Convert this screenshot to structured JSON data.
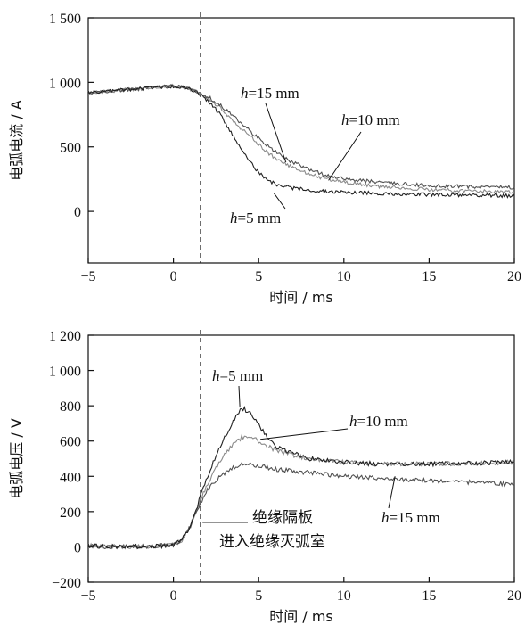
{
  "chart_data": [
    {
      "type": "line",
      "title": "",
      "xlabel": "时间 / ms",
      "ylabel": "电弧电流 / A",
      "xlim": [
        -5,
        20
      ],
      "ylim": [
        -400,
        1500
      ],
      "x_ticks": [
        -5,
        0,
        5,
        10,
        15,
        20
      ],
      "x_tick_labels": [
        "−5",
        "0",
        "5",
        "10",
        "15",
        "20"
      ],
      "y_ticks": [
        0,
        500,
        1000,
        1500
      ],
      "y_tick_labels": [
        "0",
        "500",
        "1 000",
        "1 500"
      ],
      "grid": false,
      "legend": "none",
      "vline_x": 1.6,
      "series": [
        {
          "label": "h=5 mm",
          "label_italic": "h",
          "label_rest": "=5 mm",
          "color": "#202020",
          "x": [
            -5,
            -3,
            -1,
            0,
            0.7,
            1.3,
            2,
            2.7,
            3.3,
            4,
            4.7,
            5.3,
            6,
            7,
            8,
            9,
            10,
            12,
            15,
            18,
            20
          ],
          "y": [
            920,
            940,
            960,
            970,
            960,
            930,
            860,
            760,
            630,
            480,
            350,
            260,
            210,
            180,
            165,
            155,
            148,
            140,
            130,
            125,
            120
          ]
        },
        {
          "label": "h=10 mm",
          "label_italic": "h",
          "label_rest": "=10 mm",
          "color": "#8a8a8a",
          "x": [
            -5,
            -3,
            -1,
            0,
            0.7,
            1.3,
            2,
            2.7,
            3.3,
            4,
            4.7,
            5.3,
            6,
            7,
            8,
            9,
            10,
            12,
            15,
            18,
            20
          ],
          "y": [
            920,
            940,
            960,
            970,
            960,
            930,
            880,
            810,
            730,
            640,
            560,
            480,
            410,
            340,
            290,
            250,
            225,
            195,
            170,
            155,
            150
          ]
        },
        {
          "label": "h=15 mm",
          "label_italic": "h",
          "label_rest": "=15 mm",
          "color": "#505050",
          "x": [
            -5,
            -3,
            -1,
            0,
            0.7,
            1.3,
            2,
            2.7,
            3.3,
            4,
            4.7,
            5.3,
            6,
            7,
            8,
            9,
            10,
            12,
            15,
            18,
            20
          ],
          "y": [
            920,
            940,
            960,
            970,
            960,
            935,
            890,
            830,
            760,
            680,
            600,
            530,
            460,
            380,
            320,
            280,
            255,
            225,
            200,
            190,
            185
          ]
        }
      ]
    },
    {
      "type": "line",
      "title": "",
      "xlabel": "时间 / ms",
      "ylabel": "电弧电压 / V",
      "xlim": [
        -5,
        20
      ],
      "ylim": [
        -200,
        1200
      ],
      "x_ticks": [
        -5,
        0,
        5,
        10,
        15,
        20
      ],
      "x_tick_labels": [
        "−5",
        "0",
        "5",
        "10",
        "15",
        "20"
      ],
      "y_ticks": [
        -200,
        0,
        200,
        400,
        600,
        800,
        1000,
        1200
      ],
      "y_tick_labels": [
        "−200",
        "0",
        "200",
        "400",
        "600",
        "800",
        "1 000",
        "1 200"
      ],
      "grid": false,
      "legend": "none",
      "vline_x": 1.6,
      "annotations": [
        "绝缘隔板",
        "进入绝缘灭弧室"
      ],
      "series": [
        {
          "label": "h=5 mm",
          "label_italic": "h",
          "label_rest": "=5 mm",
          "color": "#202020",
          "x": [
            -5,
            -3,
            -1,
            0,
            0.5,
            1,
            1.5,
            2,
            2.5,
            3,
            3.5,
            4,
            4.5,
            5,
            5.5,
            6,
            7,
            8,
            10,
            12,
            15,
            18,
            20
          ],
          "y": [
            5,
            0,
            5,
            10,
            40,
            120,
            260,
            400,
            520,
            620,
            710,
            790,
            760,
            690,
            620,
            570,
            530,
            500,
            480,
            470,
            470,
            475,
            480
          ]
        },
        {
          "label": "h=10 mm",
          "label_italic": "h",
          "label_rest": "=10 mm",
          "color": "#8a8a8a",
          "x": [
            -5,
            -3,
            -1,
            0,
            0.5,
            1,
            1.5,
            2,
            2.5,
            3,
            3.5,
            4,
            4.5,
            5,
            5.5,
            6,
            7,
            8,
            10,
            12,
            15,
            18,
            20
          ],
          "y": [
            5,
            0,
            5,
            10,
            40,
            120,
            250,
            360,
            450,
            520,
            580,
            620,
            625,
            600,
            570,
            550,
            520,
            500,
            480,
            470,
            470,
            475,
            480
          ]
        },
        {
          "label": "h=15 mm",
          "label_italic": "h",
          "label_rest": "=15 mm",
          "color": "#505050",
          "x": [
            -5,
            -3,
            -1,
            0,
            0.5,
            1,
            1.5,
            2,
            2.5,
            3,
            3.5,
            4,
            4.5,
            5,
            5.5,
            6,
            7,
            8,
            10,
            12,
            15,
            18,
            20
          ],
          "y": [
            5,
            0,
            5,
            10,
            40,
            120,
            230,
            320,
            380,
            420,
            450,
            470,
            470,
            460,
            450,
            440,
            430,
            420,
            400,
            390,
            375,
            365,
            355
          ]
        }
      ]
    }
  ]
}
